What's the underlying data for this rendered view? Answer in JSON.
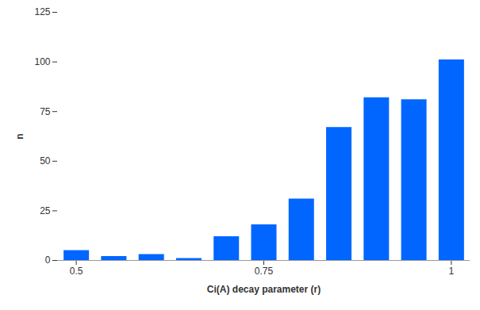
{
  "chart_data": {
    "type": "bar",
    "x_label": "Ci(A) decay parameter (r)",
    "y_label": "n",
    "x": [
      0.5,
      0.55,
      0.6,
      0.65,
      0.7,
      0.75,
      0.8,
      0.85,
      0.9,
      0.95,
      1.0
    ],
    "values": [
      5,
      2,
      3,
      1,
      12,
      18,
      31,
      67,
      82,
      81,
      101
    ],
    "color": "#0066ff",
    "xlim": [
      0.475,
      1.025
    ],
    "xticks": [
      0.5,
      0.75,
      1
    ],
    "ylim": [
      0,
      125
    ],
    "yticks": [
      0,
      25,
      50,
      75,
      100,
      125
    ],
    "grid": false
  }
}
